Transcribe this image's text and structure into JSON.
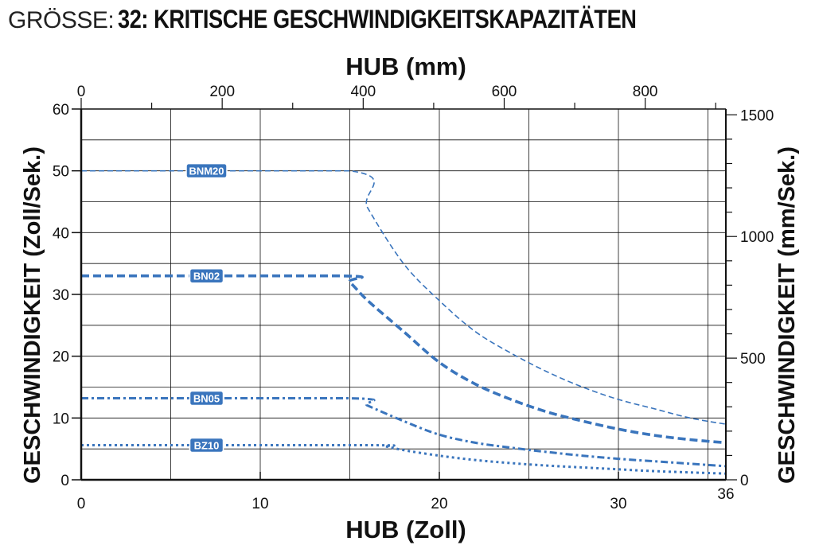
{
  "chart_data": {
    "type": "line",
    "title_prefix": "GRÖSSE:",
    "title": "32: KRITISCHE GESCHWINDIGKEITSKAPAZITÄTEN",
    "xlabel": "HUB (Zoll)",
    "ylabel": "GESCHWINDIGKEIT (Zoll/Sek.)",
    "x2label": "HUB (mm)",
    "y2label": "GESCHWINDIGKEIT (mm/Sek.)",
    "xlim": [
      0,
      36
    ],
    "ylim": [
      0,
      60
    ],
    "x2lim": [
      0,
      914.4
    ],
    "y2lim": [
      0,
      1524
    ],
    "x_ticks": [
      "0",
      "10",
      "20",
      "30"
    ],
    "x_tick_values": [
      0,
      10,
      20,
      30
    ],
    "x_end_label": "36",
    "y_ticks": [
      "0",
      "10",
      "20",
      "30",
      "40",
      "50",
      "60"
    ],
    "y_tick_values": [
      0,
      10,
      20,
      30,
      40,
      50,
      60
    ],
    "x2_ticks": [
      "0",
      "200",
      "400",
      "600",
      "800"
    ],
    "x2_tick_values": [
      0,
      200,
      400,
      600,
      800
    ],
    "y2_ticks": [
      "0",
      "500",
      "1000",
      "1500"
    ],
    "y2_tick_values": [
      0,
      500,
      1000,
      1500
    ],
    "grid": true,
    "colors": {
      "series": "#3a75bd",
      "badge_fill": "#3a75bd",
      "axis": "#111111",
      "grid": "#111111"
    },
    "series": [
      {
        "name": "BNM20",
        "style": "thin-dash",
        "x": [
          0,
          15,
          16,
          18,
          20,
          22,
          24,
          26,
          28,
          30,
          32,
          34,
          36
        ],
        "y": [
          50,
          50,
          44,
          35,
          29,
          24,
          20.5,
          17.5,
          15,
          13,
          11.5,
          10,
          9
        ]
      },
      {
        "name": "BN02",
        "style": "thick-dash",
        "x": [
          0,
          14.5,
          15,
          16,
          18,
          20,
          22,
          24,
          26,
          28,
          30,
          32,
          34,
          36
        ],
        "y": [
          33,
          33,
          32,
          29,
          24,
          19,
          15.5,
          13,
          11,
          9.5,
          8.2,
          7.2,
          6.5,
          6
        ]
      },
      {
        "name": "BN05",
        "style": "dash-dot",
        "x": [
          0,
          15,
          16,
          18,
          20,
          22,
          24,
          26,
          28,
          30,
          32,
          34,
          36
        ],
        "y": [
          13.2,
          13.2,
          12,
          9.5,
          7.3,
          6,
          5.2,
          4.5,
          3.9,
          3.4,
          3,
          2.6,
          2.2
        ]
      },
      {
        "name": "BZ10",
        "style": "dotted",
        "x": [
          0,
          16,
          17,
          18,
          20,
          22,
          24,
          26,
          28,
          30,
          32,
          34,
          36
        ],
        "y": [
          5.6,
          5.6,
          5.4,
          4.8,
          3.9,
          3.2,
          2.7,
          2.3,
          2,
          1.7,
          1.4,
          1.2,
          1
        ]
      }
    ]
  }
}
